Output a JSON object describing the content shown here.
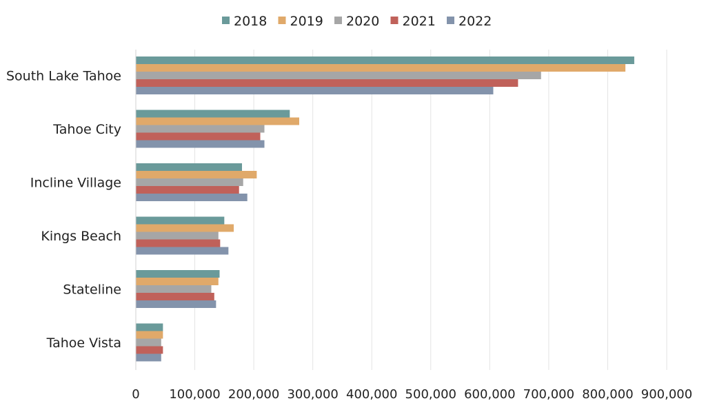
{
  "chart_data": {
    "type": "bar",
    "orientation": "horizontal",
    "categories": [
      "South Lake Tahoe",
      "Tahoe City",
      "Incline Village",
      "Kings Beach",
      "Stateline",
      "Tahoe Vista"
    ],
    "series": [
      {
        "name": "2018",
        "color": "#6a9a9a",
        "values": [
          845000,
          261000,
          180000,
          150000,
          142000,
          46000
        ]
      },
      {
        "name": "2019",
        "color": "#e0a96a",
        "values": [
          830000,
          277000,
          205000,
          166000,
          140000,
          46000
        ]
      },
      {
        "name": "2020",
        "color": "#a6a6a6",
        "values": [
          687000,
          218000,
          182000,
          140000,
          128000,
          43000
        ]
      },
      {
        "name": "2021",
        "color": "#c0615a",
        "values": [
          648000,
          211000,
          175000,
          143000,
          133000,
          46000
        ]
      },
      {
        "name": "2022",
        "color": "#8393ab",
        "values": [
          606000,
          218000,
          189000,
          157000,
          136000,
          43000
        ]
      }
    ],
    "xlim": [
      0,
      900000
    ],
    "x_ticks": [
      "0",
      "100,000",
      "200,000",
      "300,000",
      "400,000",
      "500,000",
      "600,000",
      "700,000",
      "800,000",
      "900,000"
    ],
    "title": "",
    "xlabel": "",
    "ylabel": "",
    "grid": "vertical",
    "legend_position": "top"
  }
}
